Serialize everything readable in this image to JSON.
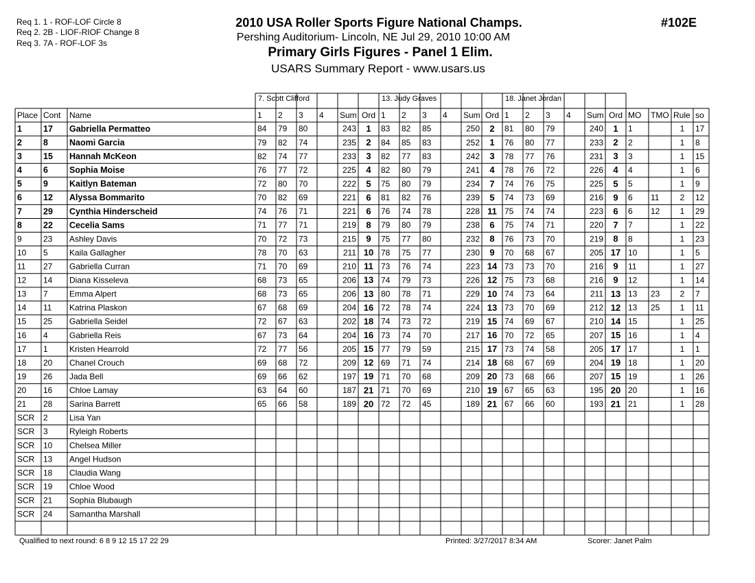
{
  "header": {
    "requirements": [
      "Req  1.  1 - ROF-LOF Circle 8",
      "Req  2.  2B - LIOF-RIOF Change 8",
      "Req  3.  7A - ROF-LOF 3s"
    ],
    "title": "2010 USA Roller Sports Figure National Champs.",
    "location": "Pershing Auditorium- Lincoln, NE  Jul 29, 2010  10:00 AM",
    "event": "Primary  Girls Figures - Panel 1 Elim.",
    "report": "USARS Summary Report - www.usars.us",
    "event_number": "#102E"
  },
  "table": {
    "judges": [
      "7.  Scott Clifford",
      "13.  Judy Graves",
      "18.  Janet Jordan"
    ],
    "columns": [
      "Place",
      "Cont",
      "Name",
      "1",
      "2",
      "3",
      "4",
      "Sum",
      "Ord",
      "1",
      "2",
      "3",
      "4",
      "Sum",
      "Ord",
      "1",
      "2",
      "3",
      "4",
      "Sum",
      "Ord",
      "MO",
      "TMO",
      "Rule",
      "so"
    ],
    "rows": [
      [
        1,
        17,
        "Gabriella Permatteo",
        84,
        79,
        80,
        null,
        243,
        1,
        83,
        82,
        85,
        null,
        250,
        2,
        81,
        80,
        79,
        null,
        240,
        1,
        1,
        null,
        1,
        17
      ],
      [
        2,
        8,
        "Naomi Garcia",
        79,
        82,
        74,
        null,
        235,
        2,
        84,
        85,
        83,
        null,
        252,
        1,
        76,
        80,
        77,
        null,
        233,
        2,
        2,
        null,
        1,
        8
      ],
      [
        3,
        15,
        "Hannah McKeon",
        82,
        74,
        77,
        null,
        233,
        3,
        82,
        77,
        83,
        null,
        242,
        3,
        78,
        77,
        76,
        null,
        231,
        3,
        3,
        null,
        1,
        15
      ],
      [
        4,
        6,
        "Sophia Moise",
        76,
        77,
        72,
        null,
        225,
        4,
        82,
        80,
        79,
        null,
        241,
        4,
        78,
        76,
        72,
        null,
        226,
        4,
        4,
        null,
        1,
        6
      ],
      [
        5,
        9,
        "Kaitlyn Bateman",
        72,
        80,
        70,
        null,
        222,
        5,
        75,
        80,
        79,
        null,
        234,
        7,
        74,
        76,
        75,
        null,
        225,
        5,
        5,
        null,
        1,
        9
      ],
      [
        6,
        12,
        "Alyssa Bommarito",
        70,
        82,
        69,
        null,
        221,
        6,
        81,
        82,
        76,
        null,
        239,
        5,
        74,
        73,
        69,
        null,
        216,
        9,
        6,
        11,
        2,
        12
      ],
      [
        7,
        29,
        "Cynthia Hinderscheid",
        74,
        76,
        71,
        null,
        221,
        6,
        76,
        74,
        78,
        null,
        228,
        11,
        75,
        74,
        74,
        null,
        223,
        6,
        6,
        12,
        1,
        29
      ],
      [
        8,
        22,
        "Cecelia Sams",
        71,
        77,
        71,
        null,
        219,
        8,
        79,
        80,
        79,
        null,
        238,
        6,
        75,
        74,
        71,
        null,
        220,
        7,
        7,
        null,
        1,
        22
      ],
      [
        9,
        23,
        "Ashley Davis",
        70,
        72,
        73,
        null,
        215,
        9,
        75,
        77,
        80,
        null,
        232,
        8,
        76,
        73,
        70,
        null,
        219,
        8,
        8,
        null,
        1,
        23
      ],
      [
        10,
        5,
        "Kaila Gallagher",
        78,
        70,
        63,
        null,
        211,
        10,
        78,
        75,
        77,
        null,
        230,
        9,
        70,
        68,
        67,
        null,
        205,
        17,
        10,
        null,
        1,
        5
      ],
      [
        11,
        27,
        "Gabriella Curran",
        71,
        70,
        69,
        null,
        210,
        11,
        73,
        76,
        74,
        null,
        223,
        14,
        73,
        73,
        70,
        null,
        216,
        9,
        11,
        null,
        1,
        27
      ],
      [
        12,
        14,
        "Diana Kisseleva",
        68,
        73,
        65,
        null,
        206,
        13,
        74,
        79,
        73,
        null,
        226,
        12,
        75,
        73,
        68,
        null,
        216,
        9,
        12,
        null,
        1,
        14
      ],
      [
        13,
        7,
        "Emma Alpert",
        68,
        73,
        65,
        null,
        206,
        13,
        80,
        78,
        71,
        null,
        229,
        10,
        74,
        73,
        64,
        null,
        211,
        13,
        13,
        23,
        2,
        7
      ],
      [
        14,
        11,
        "Katrina Plaskon",
        67,
        68,
        69,
        null,
        204,
        16,
        72,
        78,
        74,
        null,
        224,
        13,
        73,
        70,
        69,
        null,
        212,
        12,
        13,
        25,
        1,
        11
      ],
      [
        15,
        25,
        "Gabriella Seidel",
        72,
        67,
        63,
        null,
        202,
        18,
        74,
        73,
        72,
        null,
        219,
        15,
        74,
        69,
        67,
        null,
        210,
        14,
        15,
        null,
        1,
        25
      ],
      [
        16,
        4,
        "Gabriella Reis",
        67,
        73,
        64,
        null,
        204,
        16,
        73,
        74,
        70,
        null,
        217,
        16,
        70,
        72,
        65,
        null,
        207,
        15,
        16,
        null,
        1,
        4
      ],
      [
        17,
        1,
        "Kristen Hearrold",
        72,
        77,
        56,
        null,
        205,
        15,
        77,
        79,
        59,
        null,
        215,
        17,
        73,
        74,
        58,
        null,
        205,
        17,
        17,
        null,
        1,
        1
      ],
      [
        18,
        20,
        "Chanel Crouch",
        69,
        68,
        72,
        null,
        209,
        12,
        69,
        71,
        74,
        null,
        214,
        18,
        68,
        67,
        69,
        null,
        204,
        19,
        18,
        null,
        1,
        20
      ],
      [
        19,
        26,
        "Jada Bell",
        69,
        66,
        62,
        null,
        197,
        19,
        71,
        70,
        68,
        null,
        209,
        20,
        73,
        68,
        66,
        null,
        207,
        15,
        19,
        null,
        1,
        26
      ],
      [
        20,
        16,
        "Chloe Lamay",
        63,
        64,
        60,
        null,
        187,
        21,
        71,
        70,
        69,
        null,
        210,
        19,
        67,
        65,
        63,
        null,
        195,
        20,
        20,
        null,
        1,
        16
      ],
      [
        21,
        28,
        "Sarina Barrett",
        65,
        66,
        58,
        null,
        189,
        20,
        72,
        72,
        45,
        null,
        189,
        21,
        67,
        66,
        60,
        null,
        193,
        21,
        21,
        null,
        1,
        28
      ],
      [
        "SCR",
        2,
        "Lisa Yan"
      ],
      [
        "SCR",
        3,
        "Ryleigh Roberts"
      ],
      [
        "SCR",
        10,
        "Chelsea Miller"
      ],
      [
        "SCR",
        13,
        "Angel Hudson"
      ],
      [
        "SCR",
        18,
        "Claudia Wang"
      ],
      [
        "SCR",
        19,
        "Chloe Wood"
      ],
      [
        "SCR",
        21,
        "Sophia Blubaugh"
      ],
      [
        "SCR",
        24,
        "Samantha Marshall"
      ]
    ]
  },
  "footer": {
    "qualified": "Qualified to next round:   6 8 9 12 15 17 22 29",
    "printed": "Printed:  3/27/2017  8:34 AM",
    "scorer": "Scorer:   Janet Palm"
  }
}
